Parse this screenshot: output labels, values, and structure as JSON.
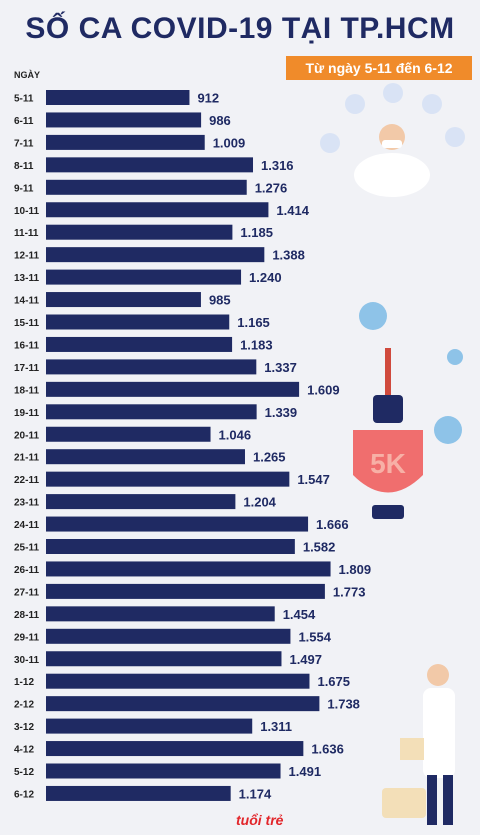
{
  "header": {
    "title": "SỐ CA COVID-19 TẠI TP.HCM",
    "subtitle": "Từ ngày 5-11 đến 6-12",
    "logo": "tuổi trẻ"
  },
  "chart_data": {
    "type": "bar",
    "orientation": "horizontal",
    "title": "SỐ CA COVID-19 TẠI TP.HCM",
    "subtitle": "Từ ngày 5-11 đến 6-12",
    "ylabel": "NGÀY",
    "categories": [
      "5-11",
      "6-11",
      "7-11",
      "8-11",
      "9-11",
      "10-11",
      "11-11",
      "12-11",
      "13-11",
      "14-11",
      "15-11",
      "16-11",
      "17-11",
      "18-11",
      "19-11",
      "20-11",
      "21-11",
      "22-11",
      "23-11",
      "24-11",
      "25-11",
      "26-11",
      "27-11",
      "28-11",
      "29-11",
      "30-11",
      "1-12",
      "2-12",
      "3-12",
      "4-12",
      "5-12",
      "6-12"
    ],
    "values": [
      912,
      986,
      1009,
      1316,
      1276,
      1414,
      1185,
      1388,
      1240,
      985,
      1165,
      1183,
      1337,
      1609,
      1339,
      1046,
      1265,
      1547,
      1204,
      1666,
      1582,
      1809,
      1773,
      1454,
      1554,
      1497,
      1675,
      1738,
      1311,
      1636,
      1491,
      1174
    ],
    "value_labels": [
      "912",
      "986",
      "1.009",
      "1.316",
      "1.276",
      "1.414",
      "1.185",
      "1.388",
      "1.240",
      "985",
      "1.165",
      "1.183",
      "1.337",
      "1.609",
      "1.339",
      "1.046",
      "1.265",
      "1.547",
      "1.204",
      "1.666",
      "1.582",
      "1.809",
      "1.773",
      "1.454",
      "1.554",
      "1.497",
      "1.675",
      "1.738",
      "1.311",
      "1.636",
      "1.491",
      "1.174"
    ],
    "bar_color": "#1f2a63",
    "grid": false
  }
}
